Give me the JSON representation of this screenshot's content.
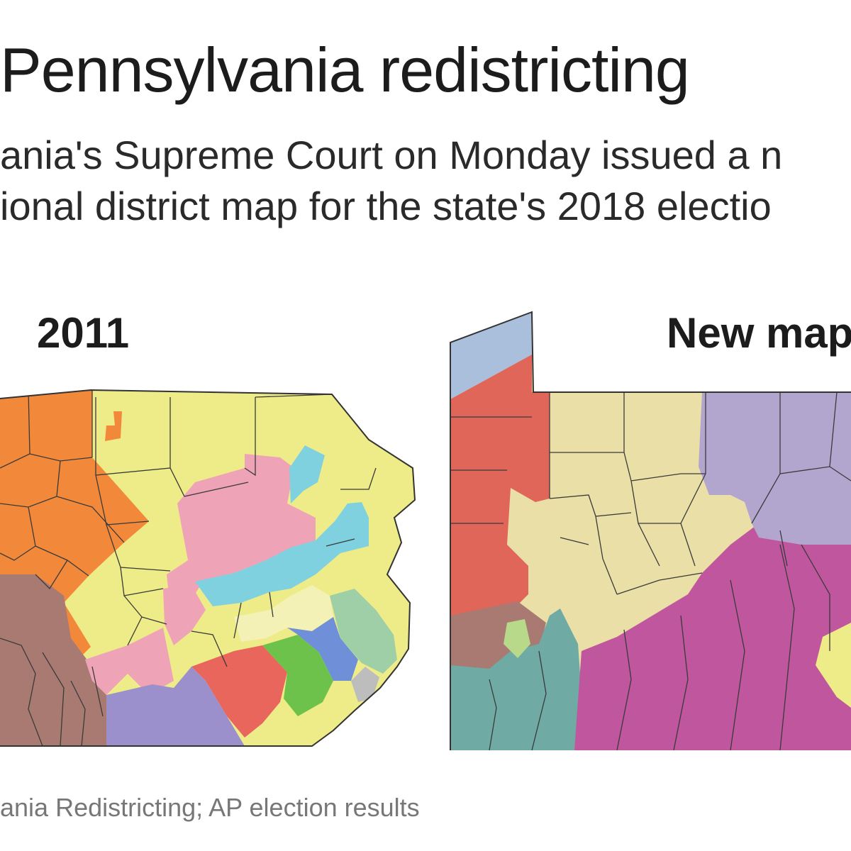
{
  "header": {
    "title": "Pennsylvania redistricting",
    "subtitle_line1": "ania's Supreme Court on Monday issued a n",
    "subtitle_line2": "ional district map for the state's 2018 electio"
  },
  "maps": [
    {
      "label": "2011"
    },
    {
      "label": "New map"
    }
  ],
  "colors": {
    "orange": "#f2893a",
    "yellow": "#eeec88",
    "pink": "#eea4b6",
    "cyan": "#7fd1e0",
    "brown": "#a97a72",
    "purple": "#9b8fcc",
    "red": "#e8665c",
    "green": "#6cc24a",
    "blue": "#6f8fd8",
    "sage": "#9fcfa6",
    "pale_yellow": "#f3f1b5",
    "red_new": "#e0665a",
    "tan": "#eadfa6",
    "lavender": "#b3a6ce",
    "magenta": "#c0569d",
    "teal": "#6faaa5",
    "light_blue": "#a9bfdc",
    "lime": "#b8d88a",
    "border": "#333333"
  },
  "footer": {
    "source": "ania Redistricting; AP election results"
  }
}
